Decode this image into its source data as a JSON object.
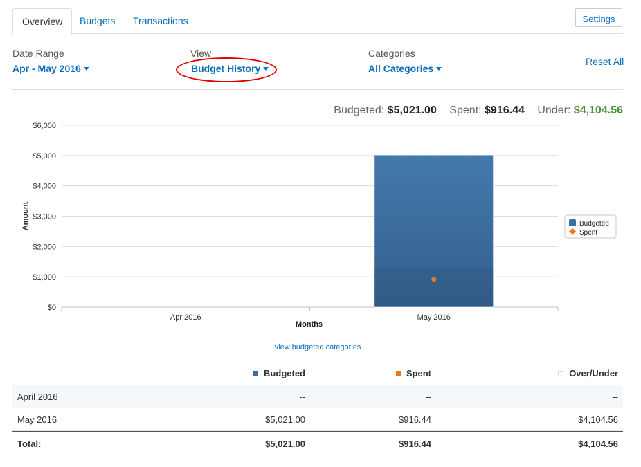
{
  "tabs": [
    {
      "label": "Overview",
      "active": true
    },
    {
      "label": "Budgets",
      "active": false
    },
    {
      "label": "Transactions",
      "active": false
    }
  ],
  "settings_label": "Settings",
  "filters": {
    "date_range": {
      "label": "Date Range",
      "value": "Apr - May 2016"
    },
    "view": {
      "label": "View",
      "value": "Budget History"
    },
    "categories": {
      "label": "Categories",
      "value": "All Categories"
    },
    "reset_label": "Reset All"
  },
  "summary": {
    "budgeted_label": "Budgeted:",
    "budgeted_value": "$5,021.00",
    "spent_label": "Spent:",
    "spent_value": "$916.44",
    "under_label": "Under:",
    "under_value": "$4,104.56",
    "under_color": "#4a8f3a"
  },
  "chart_data": {
    "type": "bar",
    "categories": [
      "Apr 2016",
      "May 2016"
    ],
    "series": [
      {
        "name": "Budgeted",
        "type": "bar",
        "color": "#3a6fa3",
        "values": [
          0,
          5021.0
        ]
      },
      {
        "name": "Spent",
        "type": "scatter",
        "color": "#e8781e",
        "values": [
          null,
          916.44
        ]
      }
    ],
    "xlabel": "Months",
    "ylabel": "Amount",
    "ylim": [
      0,
      6000
    ],
    "yticks": [
      0,
      1000,
      2000,
      3000,
      4000,
      5000,
      6000
    ],
    "ytick_labels": [
      "$0",
      "$1,000",
      "$2,000",
      "$3,000",
      "$4,000",
      "$5,000",
      "$6,000"
    ],
    "grid": true,
    "legend_position": "right"
  },
  "view_link": "view budgeted categories",
  "table": {
    "headers": {
      "budgeted": "Budgeted",
      "spent": "Spent",
      "over_under": "Over/Under"
    },
    "rows": [
      {
        "label": "April 2016",
        "budgeted": "--",
        "spent": "--",
        "over_under": "--"
      },
      {
        "label": "May 2016",
        "budgeted": "$5,021.00",
        "spent": "$916.44",
        "over_under": "$4,104.56"
      }
    ],
    "total": {
      "label": "Total:",
      "budgeted": "$5,021.00",
      "spent": "$916.44",
      "over_under": "$4,104.56"
    }
  }
}
